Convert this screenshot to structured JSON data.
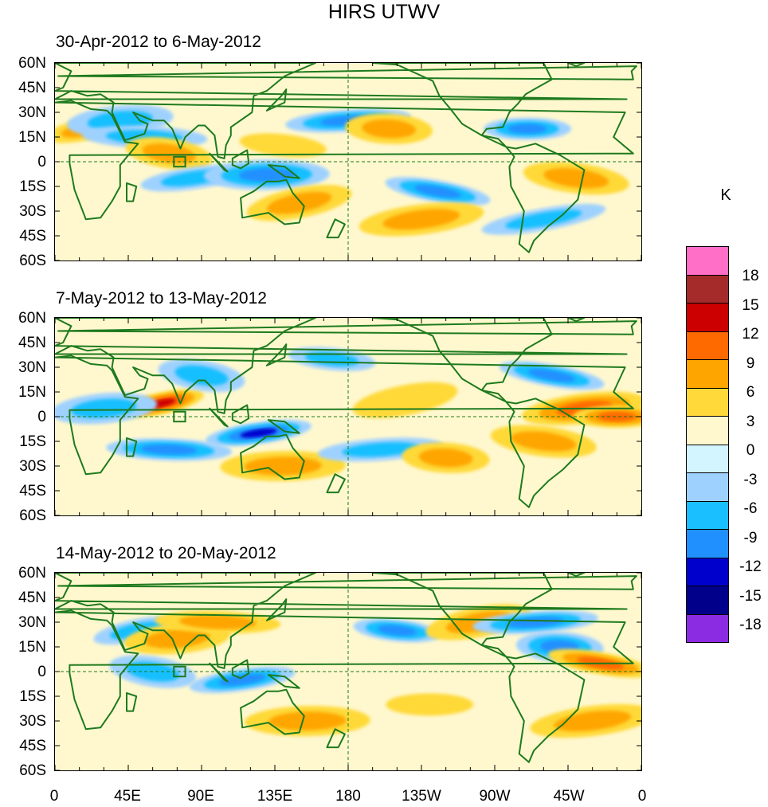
{
  "figure": {
    "title": "HIRS UTWV"
  },
  "panels": [
    {
      "title": "30-Apr-2012 to 6-May-2012"
    },
    {
      "title": "7-May-2012 to 13-May-2012"
    },
    {
      "title": "14-May-2012 to 20-May-2012"
    }
  ],
  "lat_ticks": [
    "60N",
    "45N",
    "30N",
    "15N",
    "0",
    "15S",
    "30S",
    "45S",
    "60S"
  ],
  "lon_ticks": [
    "0",
    "45E",
    "90E",
    "135E",
    "180",
    "135W",
    "90W",
    "45W",
    "0"
  ],
  "colorbar": {
    "unit": "K",
    "labels": [
      "18",
      "15",
      "12",
      "9",
      "6",
      "3",
      "0",
      "-3",
      "-6",
      "-9",
      "-12",
      "-15",
      "-18"
    ],
    "colors": [
      "#ff6ec7",
      "#a52a2a",
      "#cc0000",
      "#ff6a00",
      "#ffa500",
      "#ffd939",
      "#fff8cf",
      "#d2f5ff",
      "#9fd1ff",
      "#19bfff",
      "#2190ff",
      "#0000cd",
      "#00008b",
      "#8b2be2"
    ]
  },
  "chart_data": {
    "type": "heatmap",
    "title": "HIRS UTWV",
    "unit": "K",
    "lon_range": [
      0,
      360
    ],
    "lat_range": [
      -60,
      60
    ],
    "contour_levels": [
      -18,
      -15,
      -12,
      -9,
      -6,
      -3,
      0,
      3,
      6,
      9,
      12,
      15,
      18
    ],
    "panels": [
      {
        "period": "30-Apr-2012 to 6-May-2012",
        "anomalies": [
          {
            "lon": 20,
            "lat": 20,
            "value": 6
          },
          {
            "lon": 40,
            "lat": 25,
            "value": -6
          },
          {
            "lon": 55,
            "lat": 15,
            "value": -6
          },
          {
            "lon": 70,
            "lat": 5,
            "value": 6
          },
          {
            "lon": 85,
            "lat": -10,
            "value": -6
          },
          {
            "lon": 130,
            "lat": -8,
            "value": -9
          },
          {
            "lon": 140,
            "lat": 10,
            "value": 3
          },
          {
            "lon": 150,
            "lat": -25,
            "value": 6
          },
          {
            "lon": 180,
            "lat": 25,
            "value": -9
          },
          {
            "lon": 205,
            "lat": 20,
            "value": 6
          },
          {
            "lon": 235,
            "lat": -18,
            "value": -9
          },
          {
            "lon": 225,
            "lat": -35,
            "value": 6
          },
          {
            "lon": 290,
            "lat": 20,
            "value": -9
          },
          {
            "lon": 320,
            "lat": -10,
            "value": 6
          },
          {
            "lon": 300,
            "lat": -35,
            "value": -6
          }
        ]
      },
      {
        "period": "7-May-2012 to 13-May-2012",
        "anomalies": [
          {
            "lon": 65,
            "lat": 8,
            "value": 12
          },
          {
            "lon": 30,
            "lat": 5,
            "value": -6
          },
          {
            "lon": 70,
            "lat": -20,
            "value": -9
          },
          {
            "lon": 90,
            "lat": 25,
            "value": -6
          },
          {
            "lon": 125,
            "lat": -10,
            "value": -12
          },
          {
            "lon": 140,
            "lat": -30,
            "value": 6
          },
          {
            "lon": 170,
            "lat": 35,
            "value": -6
          },
          {
            "lon": 215,
            "lat": 10,
            "value": 3
          },
          {
            "lon": 200,
            "lat": -20,
            "value": -6
          },
          {
            "lon": 240,
            "lat": -25,
            "value": 6
          },
          {
            "lon": 305,
            "lat": 25,
            "value": -9
          },
          {
            "lon": 325,
            "lat": 5,
            "value": 9
          },
          {
            "lon": 345,
            "lat": 0,
            "value": 9
          },
          {
            "lon": 300,
            "lat": -15,
            "value": 6
          }
        ]
      },
      {
        "period": "14-May-2012 to 20-May-2012",
        "anomalies": [
          {
            "lon": 50,
            "lat": 25,
            "value": -6
          },
          {
            "lon": 75,
            "lat": 20,
            "value": 6
          },
          {
            "lon": 100,
            "lat": 30,
            "value": 6
          },
          {
            "lon": 60,
            "lat": 0,
            "value": -6
          },
          {
            "lon": 115,
            "lat": -5,
            "value": -9
          },
          {
            "lon": 155,
            "lat": -30,
            "value": 6
          },
          {
            "lon": 210,
            "lat": 25,
            "value": -9
          },
          {
            "lon": 260,
            "lat": 30,
            "value": 6
          },
          {
            "lon": 295,
            "lat": 30,
            "value": -9
          },
          {
            "lon": 310,
            "lat": 15,
            "value": -9
          },
          {
            "lon": 335,
            "lat": 5,
            "value": 9
          },
          {
            "lon": 330,
            "lat": -30,
            "value": 6
          },
          {
            "lon": 230,
            "lat": -20,
            "value": 3
          }
        ]
      }
    ]
  }
}
